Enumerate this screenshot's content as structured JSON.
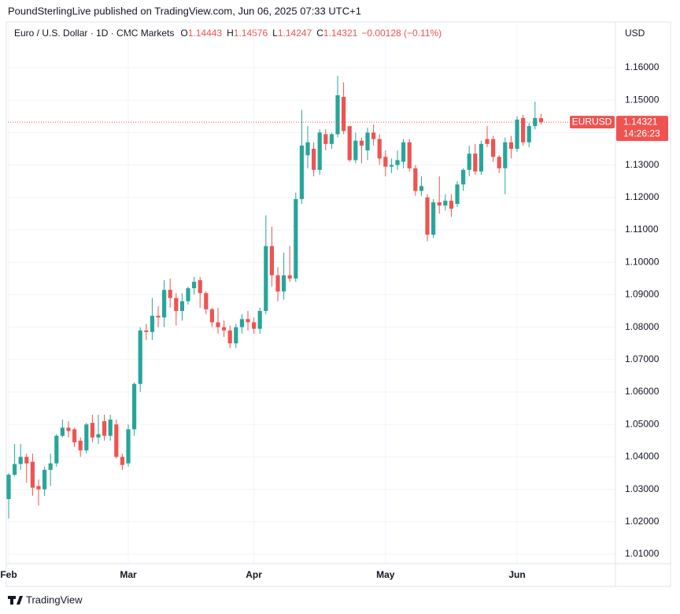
{
  "chart_data": {
    "type": "candlestick",
    "title": "PoundSterlingLive published on TradingView.com, Jun 06, 2025 07:33 UTC+1",
    "instrument": "Euro / U.S. Dollar · 1D · CMC Markets",
    "ohlc_letters": [
      "O",
      "H",
      "L",
      "C"
    ],
    "change": "−0.00128 (−0.11%)",
    "symbol": "EURUSD",
    "countdown": "14:26:23",
    "currency": "USD",
    "brand": "TradingView",
    "up_color": "#26a69a",
    "down_color": "#ef5350",
    "grid": true,
    "categories": [
      "Feb",
      null,
      null,
      null,
      null,
      null,
      null,
      null,
      null,
      null,
      null,
      null,
      null,
      null,
      null,
      null,
      null,
      null,
      null,
      null,
      "Mar",
      null,
      null,
      null,
      null,
      null,
      null,
      null,
      null,
      null,
      null,
      null,
      null,
      null,
      null,
      null,
      null,
      null,
      null,
      null,
      null,
      "Apr",
      null,
      null,
      null,
      null,
      null,
      null,
      null,
      null,
      null,
      null,
      null,
      null,
      null,
      null,
      null,
      null,
      null,
      null,
      null,
      null,
      null,
      "May",
      null,
      null,
      null,
      null,
      null,
      null,
      null,
      null,
      null,
      null,
      null,
      null,
      null,
      null,
      null,
      null,
      null,
      null,
      null,
      null,
      null,
      "Jun",
      null,
      null,
      null,
      null
    ],
    "open": [
      1.027,
      1.0345,
      1.0378,
      1.04,
      1.0385,
      1.031,
      1.03,
      1.036,
      1.038,
      1.0465,
      1.049,
      1.0485,
      1.045,
      1.042,
      1.0505,
      1.046,
      1.051,
      1.0465,
      1.05,
      1.04,
      1.038,
      1.0485,
      1.0625,
      1.079,
      1.0785,
      1.0835,
      1.083,
      1.0915,
      1.089,
      1.085,
      1.088,
      1.092,
      1.0945,
      1.0905,
      1.0855,
      1.0815,
      1.08,
      1.079,
      1.075,
      1.08,
      1.0825,
      1.0815,
      1.0795,
      1.085,
      1.105,
      1.096,
      1.091,
      1.096,
      1.095,
      1.1195,
      1.133,
      1.135,
      1.1285,
      1.1395,
      1.1365,
      1.1395,
      1.151,
      1.142,
      1.1315,
      1.1375,
      1.1345,
      1.14,
      1.138,
      1.1325,
      1.1295,
      1.13,
      1.131,
      1.137,
      1.129,
      1.122,
      1.12,
      1.1085,
      1.1185,
      1.1175,
      1.119,
      1.118,
      1.124,
      1.1285,
      1.1335,
      1.128,
      1.138,
      1.138,
      1.1325,
      1.129,
      1.137,
      1.135,
      1.1445,
      1.137,
      1.142,
      1.14443
    ],
    "high": [
      1.035,
      1.044,
      1.044,
      1.041,
      1.041,
      1.033,
      1.037,
      1.041,
      1.047,
      1.0515,
      1.051,
      1.049,
      1.046,
      1.0505,
      1.053,
      1.053,
      1.053,
      1.053,
      1.0515,
      1.041,
      1.05,
      1.063,
      1.08,
      1.081,
      1.089,
      1.0865,
      1.0945,
      1.095,
      1.0905,
      1.0905,
      1.0925,
      1.0955,
      1.0955,
      1.091,
      1.086,
      1.086,
      1.082,
      1.0805,
      1.081,
      1.084,
      1.085,
      1.083,
      1.086,
      1.1145,
      1.111,
      1.0985,
      1.103,
      1.105,
      1.1215,
      1.147,
      1.142,
      1.137,
      1.141,
      1.141,
      1.14,
      1.1575,
      1.1555,
      1.142,
      1.14,
      1.1385,
      1.1415,
      1.1425,
      1.1395,
      1.1345,
      1.132,
      1.1345,
      1.138,
      1.138,
      1.13,
      1.1265,
      1.121,
      1.1195,
      1.1265,
      1.121,
      1.121,
      1.125,
      1.129,
      1.136,
      1.1365,
      1.1375,
      1.142,
      1.139,
      1.133,
      1.1385,
      1.139,
      1.145,
      1.1455,
      1.143,
      1.1495,
      1.14576
    ],
    "low": [
      1.021,
      1.034,
      1.036,
      1.032,
      1.028,
      1.025,
      1.028,
      1.031,
      1.037,
      1.046,
      1.046,
      1.043,
      1.04,
      1.041,
      1.0445,
      1.044,
      1.045,
      1.045,
      1.0395,
      1.036,
      1.037,
      1.0465,
      1.06,
      1.076,
      1.076,
      1.08,
      1.08,
      1.086,
      1.0805,
      1.082,
      1.087,
      1.09,
      1.086,
      1.084,
      1.08,
      1.078,
      1.077,
      1.0735,
      1.0735,
      1.078,
      1.079,
      1.078,
      1.078,
      1.084,
      1.0925,
      1.088,
      1.0885,
      1.094,
      1.094,
      1.118,
      1.129,
      1.1265,
      1.127,
      1.1345,
      1.135,
      1.1385,
      1.1395,
      1.131,
      1.1305,
      1.1305,
      1.1315,
      1.136,
      1.13,
      1.1265,
      1.1275,
      1.1285,
      1.129,
      1.128,
      1.1205,
      1.1205,
      1.1065,
      1.1075,
      1.115,
      1.116,
      1.114,
      1.117,
      1.122,
      1.1265,
      1.127,
      1.127,
      1.1355,
      1.131,
      1.1275,
      1.121,
      1.132,
      1.134,
      1.136,
      1.1355,
      1.141,
      1.14247
    ],
    "close": [
      1.0345,
      1.0378,
      1.04,
      1.038,
      1.0305,
      1.03,
      1.036,
      1.038,
      1.0465,
      1.049,
      1.048,
      1.0445,
      1.042,
      1.05,
      1.046,
      1.047,
      1.0465,
      1.0515,
      1.04,
      1.0375,
      1.0485,
      1.0625,
      1.079,
      1.0785,
      1.0835,
      1.083,
      1.0915,
      1.089,
      1.085,
      1.088,
      1.092,
      1.094,
      1.0905,
      1.0855,
      1.0815,
      1.08,
      1.079,
      1.075,
      1.08,
      1.0825,
      1.0815,
      1.0795,
      1.085,
      1.105,
      1.096,
      1.091,
      1.096,
      1.095,
      1.1195,
      1.136,
      1.137,
      1.1285,
      1.14,
      1.1365,
      1.1395,
      1.1515,
      1.1405,
      1.1315,
      1.1375,
      1.136,
      1.14,
      1.138,
      1.132,
      1.1295,
      1.13,
      1.1315,
      1.137,
      1.129,
      1.122,
      1.1235,
      1.1085,
      1.1185,
      1.1175,
      1.119,
      1.1165,
      1.124,
      1.1285,
      1.1335,
      1.128,
      1.1365,
      1.1365,
      1.1325,
      1.129,
      1.137,
      1.135,
      1.144,
      1.137,
      1.142,
      1.1445,
      1.14321
    ],
    "ylim": [
      1.00709,
      1.17408
    ],
    "yticks": [
      {
        "value": 1.16,
        "label": "1.16000"
      },
      {
        "value": 1.15,
        "label": "1.15000"
      },
      {
        "value": 1.14,
        "label": "1.14000"
      },
      {
        "value": 1.13,
        "label": "1.13000"
      },
      {
        "value": 1.12,
        "label": "1.12000"
      },
      {
        "value": 1.11,
        "label": "1.11000"
      },
      {
        "value": 1.1,
        "label": "1.10000"
      },
      {
        "value": 1.09,
        "label": "1.09000"
      },
      {
        "value": 1.08,
        "label": "1.08000"
      },
      {
        "value": 1.07,
        "label": "1.07000"
      },
      {
        "value": 1.06,
        "label": "1.06000"
      },
      {
        "value": 1.05,
        "label": "1.05000"
      },
      {
        "value": 1.04,
        "label": "1.04000"
      },
      {
        "value": 1.03,
        "label": "1.03000"
      },
      {
        "value": 1.02,
        "label": "1.02000"
      },
      {
        "value": 1.01,
        "label": "1.01000"
      }
    ]
  }
}
